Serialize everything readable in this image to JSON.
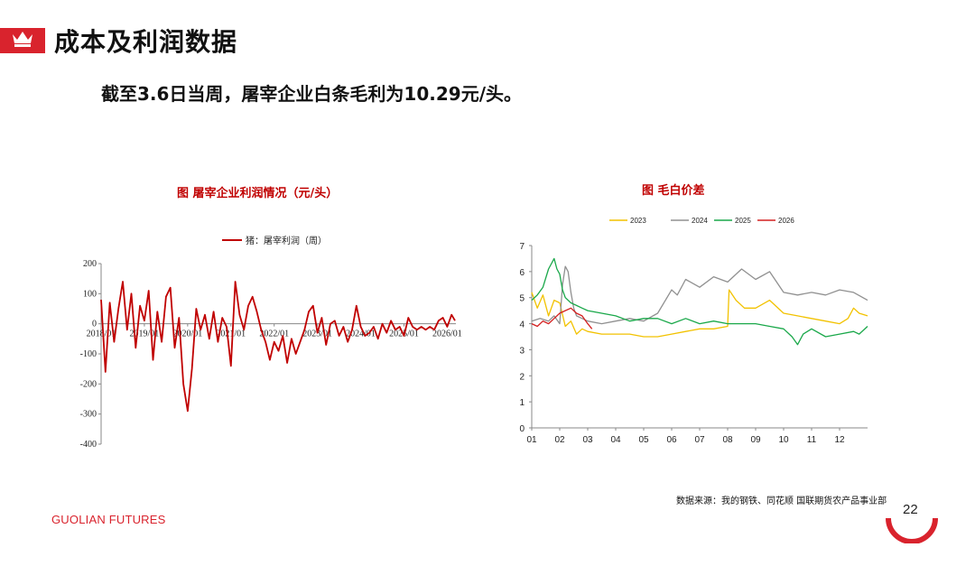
{
  "page": {
    "title": "成本及利润数据",
    "subtitle": "截至3.6日当周，屠宰企业白条毛利为10.29元/头。",
    "source": "数据来源：我的钢铁、同花顺 国联期货农产品事业部",
    "brand": "GUOLIAN FUTURES",
    "page_number": "22",
    "accent_color": "#d9232d",
    "crown_icon": "crown-icon"
  },
  "chart_data": [
    {
      "type": "line",
      "title": "图 屠宰企业利润情况（元/头）",
      "legend": [
        "猪：屠宰利润（周）"
      ],
      "legend_position": "top",
      "ylim": [
        -400,
        200
      ],
      "yticks": [
        200,
        100,
        0,
        -100,
        -200,
        -300,
        -400
      ],
      "xticks": [
        "2018/01",
        "2019/01",
        "2020/01",
        "2021/01",
        "2022/01",
        "2023/01",
        "2024/01",
        "2025/01",
        "2026/01"
      ],
      "grid": false,
      "series": [
        {
          "name": "猪：屠宰利润（周）",
          "color": "#c00000",
          "x": [
            2018.0,
            2018.1,
            2018.2,
            2018.3,
            2018.4,
            2018.5,
            2018.6,
            2018.7,
            2018.8,
            2018.9,
            2019.0,
            2019.1,
            2019.2,
            2019.3,
            2019.4,
            2019.5,
            2019.6,
            2019.7,
            2019.8,
            2019.9,
            2020.0,
            2020.1,
            2020.2,
            2020.3,
            2020.4,
            2020.5,
            2020.6,
            2020.7,
            2020.8,
            2020.9,
            2021.0,
            2021.1,
            2021.2,
            2021.3,
            2021.4,
            2021.5,
            2021.6,
            2021.7,
            2021.8,
            2021.9,
            2022.0,
            2022.1,
            2022.2,
            2022.3,
            2022.4,
            2022.5,
            2022.6,
            2022.7,
            2022.8,
            2022.9,
            2023.0,
            2023.1,
            2023.2,
            2023.3,
            2023.4,
            2023.5,
            2023.6,
            2023.7,
            2023.8,
            2023.9,
            2024.0,
            2024.1,
            2024.2,
            2024.3,
            2024.4,
            2024.5,
            2024.6,
            2024.7,
            2024.8,
            2024.9,
            2025.0,
            2025.1,
            2025.2,
            2025.3,
            2025.4,
            2025.5,
            2025.6,
            2025.7,
            2025.8,
            2025.9,
            2026.0,
            2026.1,
            2026.18
          ],
          "values": [
            80,
            -160,
            70,
            -60,
            50,
            140,
            -20,
            100,
            -80,
            60,
            10,
            110,
            -120,
            40,
            -60,
            90,
            120,
            -80,
            20,
            -200,
            -290,
            -150,
            50,
            -20,
            30,
            -50,
            40,
            -60,
            20,
            -10,
            -140,
            140,
            30,
            -20,
            60,
            90,
            40,
            -20,
            -60,
            -120,
            -60,
            -90,
            -40,
            -130,
            -50,
            -100,
            -60,
            -20,
            40,
            60,
            -30,
            20,
            -70,
            0,
            10,
            -40,
            -10,
            -60,
            -20,
            60,
            -10,
            -40,
            -30,
            -10,
            -50,
            0,
            -30,
            10,
            -20,
            -10,
            -40,
            20,
            -10,
            -20,
            -10,
            -20,
            -10,
            -20,
            10,
            20,
            -10,
            30,
            10.29
          ]
        }
      ]
    },
    {
      "type": "line",
      "title": "图 毛白价差",
      "legend": [
        "2023",
        "2024",
        "2025",
        "2026"
      ],
      "legend_position": "top",
      "ylim": [
        0,
        7
      ],
      "yticks": [
        0,
        1,
        2,
        3,
        4,
        5,
        6,
        7
      ],
      "categories": [
        "01",
        "02",
        "03",
        "04",
        "05",
        "06",
        "07",
        "08",
        "09",
        "10",
        "11",
        "12"
      ],
      "grid": false,
      "series": [
        {
          "name": "2023",
          "color": "#f2c200",
          "x": [
            1.0,
            1.2,
            1.4,
            1.6,
            1.8,
            2.0,
            2.2,
            2.4,
            2.6,
            2.8,
            3.0,
            3.5,
            4.0,
            4.5,
            5.0,
            5.5,
            6.0,
            6.5,
            7.0,
            7.5,
            8.0,
            8.05,
            8.3,
            8.6,
            9.0,
            9.5,
            10.0,
            10.5,
            11.0,
            11.5,
            12.0,
            12.3,
            12.5,
            12.7,
            13.0
          ],
          "values": [
            5.2,
            4.6,
            5.1,
            4.3,
            4.9,
            4.8,
            3.9,
            4.1,
            3.6,
            3.8,
            3.7,
            3.6,
            3.6,
            3.6,
            3.5,
            3.5,
            3.6,
            3.7,
            3.8,
            3.8,
            3.9,
            5.3,
            4.9,
            4.6,
            4.6,
            4.9,
            4.4,
            4.3,
            4.2,
            4.1,
            4.0,
            4.2,
            4.6,
            4.4,
            4.3
          ]
        },
        {
          "name": "2024",
          "color": "#909090",
          "x": [
            1.0,
            1.3,
            1.6,
            1.8,
            2.0,
            2.1,
            2.2,
            2.3,
            2.4,
            2.5,
            2.6,
            2.8,
            3.0,
            3.5,
            4.0,
            4.5,
            5.0,
            5.5,
            6.0,
            6.2,
            6.5,
            7.0,
            7.5,
            8.0,
            8.5,
            9.0,
            9.5,
            10.0,
            10.5,
            11.0,
            11.5,
            12.0,
            12.5,
            13.0
          ],
          "values": [
            4.1,
            4.2,
            4.1,
            4.3,
            4.0,
            5.5,
            6.2,
            6.0,
            5.2,
            4.6,
            4.3,
            4.2,
            4.1,
            4.0,
            4.1,
            4.2,
            4.1,
            4.4,
            5.3,
            5.1,
            5.7,
            5.4,
            5.8,
            5.6,
            6.1,
            5.7,
            6.0,
            5.2,
            5.1,
            5.2,
            5.1,
            5.3,
            5.2,
            4.9
          ]
        },
        {
          "name": "2025",
          "color": "#1aa84a",
          "x": [
            1.0,
            1.2,
            1.4,
            1.6,
            1.8,
            1.9,
            2.0,
            2.1,
            2.2,
            2.4,
            2.6,
            2.8,
            3.0,
            3.5,
            4.0,
            4.5,
            5.0,
            5.5,
            6.0,
            6.5,
            7.0,
            7.5,
            8.0,
            8.5,
            9.0,
            9.5,
            10.0,
            10.3,
            10.5,
            10.7,
            11.0,
            11.5,
            12.0,
            12.5,
            12.7,
            13.0
          ],
          "values": [
            4.9,
            5.1,
            5.4,
            6.1,
            6.5,
            6.1,
            5.9,
            5.3,
            5.0,
            4.8,
            4.7,
            4.6,
            4.5,
            4.4,
            4.3,
            4.1,
            4.2,
            4.2,
            4.0,
            4.2,
            4.0,
            4.1,
            4.0,
            4.0,
            4.0,
            3.9,
            3.8,
            3.5,
            3.2,
            3.6,
            3.8,
            3.5,
            3.6,
            3.7,
            3.6,
            3.9
          ]
        },
        {
          "name": "2026",
          "color": "#d42020",
          "x": [
            1.0,
            1.2,
            1.4,
            1.6,
            1.8,
            2.0,
            2.2,
            2.4,
            2.6,
            2.8,
            3.0,
            3.15
          ],
          "values": [
            4.0,
            3.9,
            4.1,
            4.0,
            4.2,
            4.4,
            4.5,
            4.6,
            4.4,
            4.3,
            4.0,
            3.8
          ]
        }
      ]
    }
  ]
}
